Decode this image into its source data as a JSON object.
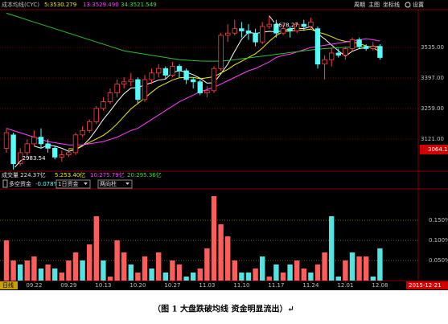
{
  "header": {
    "title": "成本均线(CYC)",
    "ma_labels": [
      {
        "text": "5:3530.279",
        "color": "#f0f000"
      },
      {
        "text": "13:3529.490",
        "color": "#ff40ff"
      },
      {
        "text": "34:3521.549",
        "color": "#40e040"
      }
    ]
  },
  "toolbar": [
    "周期",
    "主图",
    "坐标线",
    "设置"
  ],
  "volume_info": [
    {
      "text": "成交量  224.37亿",
      "color": "#e0e0e0"
    },
    {
      "text": "5:253.40亿",
      "color": "#f0f000"
    },
    {
      "text": "10:275.79亿",
      "color": "#ff40ff"
    },
    {
      "text": "20:295.36亿",
      "color": "#40e040"
    }
  ],
  "price_tag": "3064.1",
  "period": "日线",
  "date_tag": "2015-12-21",
  "caption": "（图 1  大盘跌破均线  资金明显流出）↵",
  "chart_data": [
    {
      "type": "candlestick",
      "up_color": "#ff4040",
      "down_color": "#54fcfc",
      "grid": true,
      "open": [
        3080,
        3140,
        3010,
        3060,
        3100,
        3130,
        3100,
        3080,
        3040,
        3050,
        3060,
        3140,
        3160,
        3200,
        3260,
        3290,
        3330,
        3370,
        3380,
        3390,
        3300,
        3390,
        3420,
        3440,
        3410,
        3450,
        3430,
        3390,
        3380,
        3330,
        3340,
        3440,
        3590,
        3600,
        3620,
        3610,
        3600,
        3560,
        3630,
        3640,
        3600,
        3620,
        3610,
        3640,
        3630,
        3620,
        3460,
        3480,
        3510,
        3500,
        3530,
        3570,
        3540,
        3530,
        3540
      ],
      "high": [
        3170,
        3150,
        3080,
        3120,
        3160,
        3170,
        3120,
        3090,
        3070,
        3080,
        3150,
        3180,
        3210,
        3270,
        3310,
        3350,
        3390,
        3400,
        3420,
        3400,
        3410,
        3440,
        3460,
        3450,
        3470,
        3460,
        3440,
        3400,
        3390,
        3360,
        3450,
        3600,
        3640,
        3660,
        3650,
        3640,
        3620,
        3650,
        3678.27,
        3660,
        3640,
        3630,
        3650,
        3660,
        3670,
        3630,
        3500,
        3530,
        3530,
        3540,
        3580,
        3580,
        3550,
        3560,
        3550
      ],
      "low": [
        3060,
        2983.54,
        3000,
        3040,
        3090,
        3080,
        3060,
        3030,
        3020,
        3040,
        3050,
        3130,
        3150,
        3190,
        3250,
        3280,
        3310,
        3350,
        3360,
        3280,
        3290,
        3370,
        3400,
        3390,
        3400,
        3400,
        3370,
        3350,
        3320,
        3310,
        3330,
        3430,
        3560,
        3590,
        3580,
        3570,
        3540,
        3550,
        3620,
        3580,
        3590,
        3580,
        3600,
        3610,
        3620,
        3440,
        3390,
        3450,
        3490,
        3480,
        3520,
        3530,
        3520,
        3520,
        3480
      ],
      "close": [
        3150,
        3010,
        3060,
        3100,
        3130,
        3100,
        3080,
        3040,
        3050,
        3060,
        3140,
        3160,
        3200,
        3260,
        3290,
        3330,
        3370,
        3380,
        3390,
        3300,
        3390,
        3420,
        3440,
        3410,
        3450,
        3430,
        3390,
        3380,
        3330,
        3340,
        3440,
        3590,
        3600,
        3620,
        3610,
        3600,
        3560,
        3630,
        3640,
        3600,
        3620,
        3610,
        3640,
        3630,
        3650,
        3460,
        3480,
        3510,
        3500,
        3530,
        3570,
        3540,
        3530,
        3540,
        3490
      ],
      "lines": [
        {
          "color": "#ffffff",
          "values": [
            null,
            null,
            null,
            null,
            3090,
            3080,
            3094,
            3090,
            3080,
            3066,
            3074,
            3090,
            3122,
            3164,
            3210,
            3248,
            3290,
            3326,
            3352,
            3354,
            3366,
            3376,
            3388,
            3392,
            3422,
            3430,
            3424,
            3412,
            3396,
            3374,
            3376,
            3416,
            3460,
            3518,
            3572,
            3604,
            3598,
            3604,
            3608,
            3606,
            3610,
            3620,
            3622,
            3620,
            3630,
            3598,
            3574,
            3546,
            3520,
            3496,
            3518,
            3530,
            3534,
            3542,
            3534
          ]
        },
        {
          "color": "#f0f000",
          "values": [
            null,
            null,
            null,
            null,
            null,
            null,
            null,
            null,
            null,
            3078,
            3077,
            3092,
            3106,
            3122,
            3138,
            3161,
            3190,
            3224,
            3258,
            3282,
            3307,
            3333,
            3357,
            3372,
            3388,
            3398,
            3400,
            3400,
            3394,
            3398,
            3403,
            3420,
            3436,
            3457,
            3473,
            3490,
            3507,
            3532,
            3563,
            3589,
            3607,
            3609,
            3613,
            3614,
            3618,
            3604,
            3596,
            3584,
            3570,
            3563,
            3560,
            3553,
            3542,
            3533,
            3517
          ]
        },
        {
          "color": "#ff40ff",
          "values": [
            3170,
            3160,
            3150,
            3140,
            3130,
            3120,
            3110,
            3105,
            3100,
            3095,
            3095,
            3095,
            3100,
            3105,
            3110,
            3120,
            3130,
            3145,
            3160,
            3170,
            3190,
            3210,
            3230,
            3250,
            3270,
            3290,
            3305,
            3320,
            3335,
            3345,
            3355,
            3370,
            3385,
            3400,
            3415,
            3430,
            3440,
            3455,
            3470,
            3490,
            3500,
            3505,
            3515,
            3525,
            3535,
            3540,
            3545,
            3550,
            3555,
            3560,
            3565,
            3570,
            3575,
            3570,
            3565
          ]
        },
        {
          "color": "#30c030",
          "values": [
            3690,
            3680,
            3670,
            3660,
            3650,
            3640,
            3630,
            3620,
            3610,
            3600,
            3590,
            3580,
            3570,
            3560,
            3550,
            3540,
            3530,
            3520,
            3515,
            3510,
            3505,
            3500,
            3495,
            3490,
            3485,
            3480,
            3478,
            3476,
            3474,
            3473,
            3473,
            3474,
            3476,
            3480,
            3484,
            3488,
            3492,
            3496,
            3500,
            3504,
            3508,
            3512,
            3516,
            3520,
            3524,
            3527,
            3530,
            3532,
            3534,
            3536,
            3537,
            3538,
            3539,
            3540,
            3540
          ]
        }
      ],
      "ylim": [
        2976,
        3706
      ],
      "yticks": [
        {
          "value": 3121,
          "label": "3121.00"
        },
        {
          "value": 3259,
          "label": "3259.00"
        },
        {
          "value": 3397,
          "label": "3397.00"
        },
        {
          "value": 3535,
          "label": "3535.00"
        }
      ]
    },
    {
      "type": "bar",
      "title": "多空资金",
      "value_text": "-0.078%",
      "selectors": [
        "1日资金",
        "两向柱"
      ],
      "grid": true,
      "categories": [
        null,
        null,
        null,
        null,
        "09.22",
        null,
        null,
        null,
        null,
        "09.29",
        null,
        null,
        null,
        null,
        "10.13",
        null,
        null,
        null,
        null,
        "10.20",
        null,
        null,
        null,
        null,
        "10.27",
        null,
        null,
        null,
        null,
        "11.03",
        null,
        null,
        null,
        null,
        "11.10",
        null,
        null,
        null,
        null,
        "11.17",
        null,
        null,
        null,
        null,
        "11.24",
        null,
        null,
        null,
        null,
        "12.01",
        null,
        null,
        null,
        null,
        "12.08"
      ],
      "values": [
        0.1,
        0.05,
        0.04,
        0.05,
        0.06,
        0.03,
        0.04,
        0.03,
        0.02,
        0.05,
        0.07,
        0.05,
        0.09,
        0.16,
        0.05,
        0.01,
        0.1,
        0.07,
        0.04,
        0.02,
        0.06,
        0.03,
        0.07,
        0.02,
        0.05,
        0.04,
        0.01,
        0.02,
        0.03,
        0.08,
        0.21,
        0.14,
        0.11,
        0.05,
        0.02,
        0.02,
        0.03,
        0.06,
        0.01,
        0.04,
        0.02,
        0.04,
        0.05,
        0.03,
        0.02,
        0.04,
        0.07,
        0.16,
        0.01,
        0.05,
        0.07,
        0.06,
        0.06,
        0.01,
        0.08
      ],
      "colors": [
        "#ff5c5c",
        "#ff5c5c",
        "#53e3e3",
        "#ff5c5c",
        "#ff5c5c",
        "#53e3e3",
        "#ff5c5c",
        "#53e3e3",
        "#ff5c5c",
        "#ff5c5c",
        "#ff5c5c",
        "#53e3e3",
        "#ff5c5c",
        "#ff5c5c",
        "#53e3e3",
        "#ff5c5c",
        "#ff5c5c",
        "#ff5c5c",
        "#53e3e3",
        "#ff5c5c",
        "#ff5c5c",
        "#53e3e3",
        "#ff5c5c",
        "#53e3e3",
        "#ff5c5c",
        "#ff5c5c",
        "#53e3e3",
        "#53e3e3",
        "#ff5c5c",
        "#ff5c5c",
        "#ff5c5c",
        "#ff5c5c",
        "#ff5c5c",
        "#ff5c5c",
        "#53e3e3",
        "#53e3e3",
        "#ff5c5c",
        "#53e3e3",
        "#ff5c5c",
        "#53e3e3",
        "#ff5c5c",
        "#53e3e3",
        "#ff5c5c",
        "#ff5c5c",
        "#53e3e3",
        "#ff5c5c",
        "#ff5c5c",
        "#53e3e3",
        "#53e3e3",
        "#ff5c5c",
        "#53e3e3",
        "#ff5c5c",
        "#ff5c5c",
        "#53e3e3",
        "#53e3e3"
      ],
      "ylim": [
        0,
        0.226
      ],
      "yticks": [
        {
          "value": 0.05,
          "label": "0.050%"
        },
        {
          "value": 0.1,
          "label": "0.100%"
        },
        {
          "value": 0.15,
          "label": "0.150%"
        }
      ]
    }
  ]
}
